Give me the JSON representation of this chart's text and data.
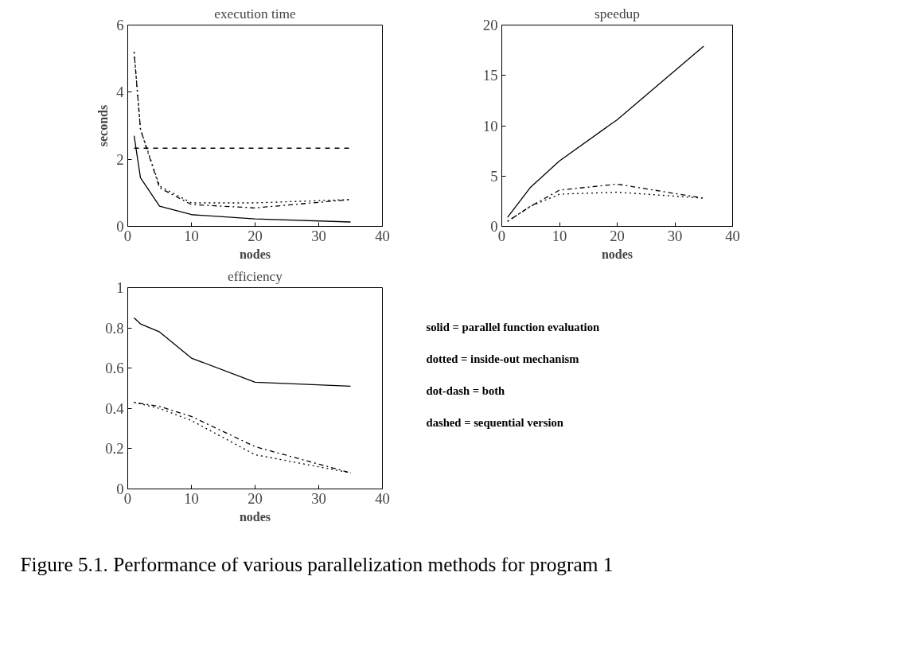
{
  "chart_data": [
    {
      "type": "line",
      "title": "execution time",
      "xlabel": "nodes",
      "ylabel": "seconds",
      "xlim": [
        0,
        40
      ],
      "xticks": [
        0,
        10,
        20,
        30,
        40
      ],
      "ylim": [
        0,
        6
      ],
      "yticks": [
        0,
        2,
        4,
        6
      ],
      "grid": false,
      "series": [
        {
          "color": "#000000",
          "line_style": "solid",
          "x": [
            1,
            2,
            5,
            10,
            20,
            35
          ],
          "values": [
            2.7,
            1.45,
            0.6,
            0.35,
            0.22,
            0.13
          ]
        },
        {
          "color": "#000000",
          "line_style": "dotted",
          "x": [
            1,
            2,
            5,
            10,
            20,
            35
          ],
          "values": [
            5.2,
            2.9,
            1.2,
            0.7,
            0.7,
            0.8
          ]
        },
        {
          "color": "#000000",
          "line_style": "dashdot",
          "x": [
            1,
            2,
            3,
            5,
            10,
            20,
            35
          ],
          "values": [
            5.2,
            2.9,
            2.3,
            1.15,
            0.65,
            0.55,
            0.8
          ]
        },
        {
          "color": "#000000",
          "line_style": "dashed",
          "x": [
            1,
            35
          ],
          "values": [
            2.33,
            2.33
          ]
        }
      ]
    },
    {
      "type": "line",
      "title": "speedup",
      "xlabel": "nodes",
      "xlim": [
        0,
        40
      ],
      "xticks": [
        0,
        10,
        20,
        30,
        40
      ],
      "ylim": [
        0,
        20
      ],
      "yticks": [
        0,
        5,
        10,
        15,
        20
      ],
      "grid": false,
      "series": [
        {
          "color": "#000000",
          "line_style": "solid",
          "x": [
            1,
            5,
            10,
            20,
            35
          ],
          "values": [
            0.9,
            3.9,
            6.5,
            10.6,
            17.9
          ]
        },
        {
          "color": "#000000",
          "line_style": "dotted",
          "x": [
            1,
            5,
            10,
            20,
            35
          ],
          "values": [
            0.5,
            2.0,
            3.2,
            3.4,
            2.8
          ]
        },
        {
          "color": "#000000",
          "line_style": "dashdot",
          "x": [
            1,
            5,
            10,
            20,
            35
          ],
          "values": [
            0.5,
            2.0,
            3.6,
            4.2,
            2.8
          ]
        }
      ]
    },
    {
      "type": "line",
      "title": "efficiency",
      "xlabel": "nodes",
      "xlim": [
        0,
        40
      ],
      "xticks": [
        0,
        10,
        20,
        30,
        40
      ],
      "ylim": [
        0,
        1
      ],
      "yticks": [
        0,
        0.2,
        0.4,
        0.6,
        0.8,
        1
      ],
      "grid": false,
      "series": [
        {
          "color": "#000000",
          "line_style": "solid",
          "x": [
            1,
            2,
            5,
            10,
            20,
            35
          ],
          "values": [
            0.85,
            0.82,
            0.78,
            0.65,
            0.53,
            0.51
          ]
        },
        {
          "color": "#000000",
          "line_style": "dotted",
          "x": [
            1,
            5,
            10,
            20,
            35
          ],
          "values": [
            0.43,
            0.4,
            0.34,
            0.17,
            0.08
          ]
        },
        {
          "color": "#000000",
          "line_style": "dashdot",
          "x": [
            1,
            5,
            10,
            20,
            35
          ],
          "values": [
            0.43,
            0.41,
            0.36,
            0.21,
            0.08
          ]
        }
      ]
    },
    {
      "type": "other",
      "annotations": [
        "solid = parallel function evaluation",
        "dotted = inside-out mechanism",
        "dot-dash = both",
        "dashed = sequential version"
      ]
    },
    {
      "type": "other",
      "annotations": [
        "Figure 5.1. Performance of various parallelization methods for program 1"
      ]
    }
  ]
}
